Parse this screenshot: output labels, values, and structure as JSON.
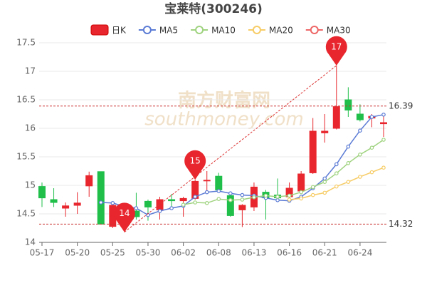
{
  "chart_data": {
    "type": "candlestick",
    "title": "宝莱特(300246)",
    "watermark": [
      "南方财富网",
      "southmoney.com"
    ],
    "categories": [
      "05-17",
      null,
      null,
      "05-20",
      null,
      null,
      "05-25",
      null,
      null,
      "05-30",
      null,
      null,
      "06-02",
      null,
      null,
      "06-08",
      null,
      null,
      "06-13",
      null,
      null,
      "06-16",
      null,
      null,
      "06-21",
      null,
      null,
      "06-24",
      null,
      null
    ],
    "ylim": [
      14,
      17.5
    ],
    "yticks": [
      14,
      14.5,
      15,
      15.5,
      16,
      16.5,
      17,
      17.5
    ],
    "grid": true,
    "series": [
      {
        "name": "日K",
        "up_color": "#e8262d",
        "down_color": "#1fbf4a",
        "open": [
          14.98,
          14.75,
          14.6,
          14.65,
          14.99,
          15.24,
          14.28,
          14.45,
          14.55,
          14.72,
          14.57,
          14.75,
          14.73,
          14.77,
          15.08,
          15.16,
          14.82,
          14.57,
          14.62,
          14.88,
          14.83,
          14.8,
          14.9,
          15.22,
          15.92,
          16.0,
          16.5,
          16.25,
          16.18,
          16.08
        ],
        "close": [
          14.78,
          14.7,
          14.64,
          14.69,
          15.17,
          14.32,
          14.65,
          14.6,
          14.45,
          14.62,
          14.75,
          14.73,
          14.77,
          15.07,
          15.09,
          14.92,
          14.47,
          14.65,
          14.97,
          14.78,
          14.78,
          14.95,
          15.2,
          15.95,
          15.95,
          16.38,
          16.32,
          16.15,
          16.21,
          16.1
        ],
        "high": [
          15.05,
          14.95,
          14.7,
          14.88,
          15.24,
          15.24,
          14.68,
          14.62,
          14.87,
          14.75,
          14.8,
          14.85,
          14.8,
          15.1,
          15.25,
          15.22,
          14.85,
          14.67,
          15.05,
          14.92,
          15.12,
          15.05,
          15.25,
          16.18,
          16.25,
          17.1,
          16.72,
          16.42,
          16.25,
          16.22
        ],
        "low": [
          14.62,
          14.62,
          14.45,
          14.5,
          14.8,
          14.32,
          14.25,
          14.18,
          14.4,
          14.38,
          14.4,
          14.62,
          14.45,
          14.75,
          14.9,
          14.9,
          14.45,
          14.27,
          14.55,
          14.4,
          14.75,
          14.72,
          14.85,
          15.2,
          15.75,
          15.98,
          16.2,
          16.12,
          16.02,
          15.85
        ]
      },
      {
        "name": "MA5",
        "color": "#5b7bd5",
        "values": [
          null,
          null,
          null,
          null,
          null,
          14.7,
          14.69,
          14.63,
          14.6,
          14.48,
          14.55,
          14.6,
          14.64,
          14.8,
          14.88,
          14.9,
          14.86,
          14.83,
          14.82,
          14.78,
          14.74,
          14.73,
          14.8,
          14.95,
          15.12,
          15.37,
          15.68,
          15.96,
          16.2,
          16.24
        ]
      },
      {
        "name": "MA10",
        "color": "#9fd37f",
        "values": [
          null,
          null,
          null,
          null,
          null,
          null,
          null,
          null,
          null,
          null,
          null,
          null,
          14.66,
          14.7,
          14.69,
          14.76,
          14.74,
          14.75,
          14.79,
          14.82,
          14.8,
          14.82,
          14.88,
          14.97,
          15.06,
          15.21,
          15.39,
          15.54,
          15.66,
          15.8
        ]
      },
      {
        "name": "MA20",
        "color": "#f7cc66",
        "values": [
          null,
          null,
          null,
          null,
          null,
          null,
          null,
          null,
          null,
          null,
          null,
          null,
          null,
          null,
          null,
          null,
          null,
          null,
          null,
          null,
          null,
          14.75,
          14.77,
          14.83,
          14.87,
          14.98,
          15.06,
          15.15,
          15.23,
          15.31
        ]
      },
      {
        "name": "MA30",
        "color": "#ee6666",
        "values": [
          null,
          null,
          null,
          null,
          null,
          null,
          null,
          null,
          null,
          null,
          null,
          null,
          null,
          null,
          null,
          null,
          null,
          null,
          null,
          null,
          null,
          null,
          null,
          null,
          null,
          null,
          null,
          null,
          null,
          null
        ]
      }
    ],
    "markers": [
      {
        "at": 7,
        "value": 14.18,
        "label": "14"
      },
      {
        "at": 13,
        "value": 15.1,
        "label": "15"
      },
      {
        "at": 25,
        "value": 17.1,
        "label": "17"
      }
    ],
    "hlines": [
      16.39,
      14.32
    ]
  }
}
